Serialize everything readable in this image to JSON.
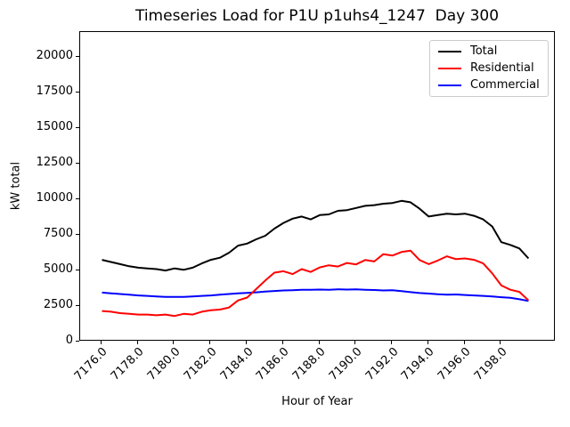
{
  "chart_data": {
    "type": "line",
    "title": "Timeseries Load for P1U p1uhs4_1247  Day 300",
    "xlabel": "Hour of Year",
    "ylabel": "kW total",
    "xlim": [
      7174.8,
      7201.0
    ],
    "ylim": [
      0,
      21780
    ],
    "grid": false,
    "legend_position": "upper right",
    "x_ticks": [
      7176,
      7178,
      7180,
      7182,
      7184,
      7186,
      7188,
      7190,
      7192,
      7194,
      7196,
      7198
    ],
    "x_tick_labels": [
      "7176.0",
      "7178.0",
      "7180.0",
      "7182.0",
      "7184.0",
      "7186.0",
      "7188.0",
      "7190.0",
      "7192.0",
      "7194.0",
      "7196.0",
      "7198.0"
    ],
    "y_ticks": [
      0,
      2500,
      5000,
      7500,
      10000,
      12500,
      15000,
      17500,
      20000
    ],
    "y_tick_labels": [
      "0",
      "2500",
      "5000",
      "7500",
      "10000",
      "12500",
      "15000",
      "17500",
      "20000"
    ],
    "x": [
      7176.0,
      7176.5,
      7177.0,
      7177.5,
      7178.0,
      7178.5,
      7179.0,
      7179.5,
      7180.0,
      7180.5,
      7181.0,
      7181.5,
      7182.0,
      7182.5,
      7183.0,
      7183.5,
      7184.0,
      7184.5,
      7185.0,
      7185.5,
      7186.0,
      7186.5,
      7187.0,
      7187.5,
      7188.0,
      7188.5,
      7189.0,
      7189.5,
      7190.0,
      7190.5,
      7191.0,
      7191.5,
      7192.0,
      7192.5,
      7193.0,
      7193.5,
      7194.0,
      7194.5,
      7195.0,
      7195.5,
      7196.0,
      7196.5,
      7197.0,
      7197.5,
      7198.0,
      7198.5,
      7199.0,
      7199.5
    ],
    "series": [
      {
        "name": "Total",
        "color": "#000000",
        "values": [
          5750,
          5600,
          5450,
          5300,
          5200,
          5150,
          5100,
          5000,
          5150,
          5050,
          5200,
          5500,
          5750,
          5900,
          6250,
          6750,
          6900,
          7200,
          7450,
          7950,
          8350,
          8650,
          8800,
          8600,
          8900,
          8950,
          9200,
          9250,
          9400,
          9550,
          9600,
          9700,
          9750,
          9900,
          9800,
          9350,
          8800,
          8900,
          9000,
          8950,
          9000,
          8850,
          8600,
          8100,
          7000,
          6800,
          6550,
          5850
        ]
      },
      {
        "name": "Residential",
        "color": "#ff0000",
        "values": [
          2150,
          2100,
          2000,
          1950,
          1900,
          1900,
          1850,
          1900,
          1800,
          1950,
          1900,
          2100,
          2200,
          2250,
          2400,
          2900,
          3100,
          3700,
          4300,
          4850,
          4950,
          4750,
          5100,
          4900,
          5220,
          5370,
          5280,
          5530,
          5430,
          5740,
          5640,
          6150,
          6050,
          6300,
          6400,
          5740,
          5450,
          5700,
          6000,
          5800,
          5850,
          5750,
          5500,
          4800,
          3950,
          3650,
          3500,
          2900
        ]
      },
      {
        "name": "Commercial",
        "color": "#0000ff",
        "values": [
          3450,
          3400,
          3350,
          3300,
          3250,
          3220,
          3180,
          3150,
          3150,
          3150,
          3180,
          3220,
          3250,
          3300,
          3350,
          3400,
          3430,
          3470,
          3520,
          3560,
          3600,
          3620,
          3650,
          3650,
          3660,
          3650,
          3680,
          3660,
          3680,
          3650,
          3630,
          3600,
          3620,
          3550,
          3480,
          3420,
          3380,
          3330,
          3300,
          3320,
          3280,
          3250,
          3220,
          3170,
          3120,
          3080,
          2980,
          2860
        ]
      }
    ]
  }
}
